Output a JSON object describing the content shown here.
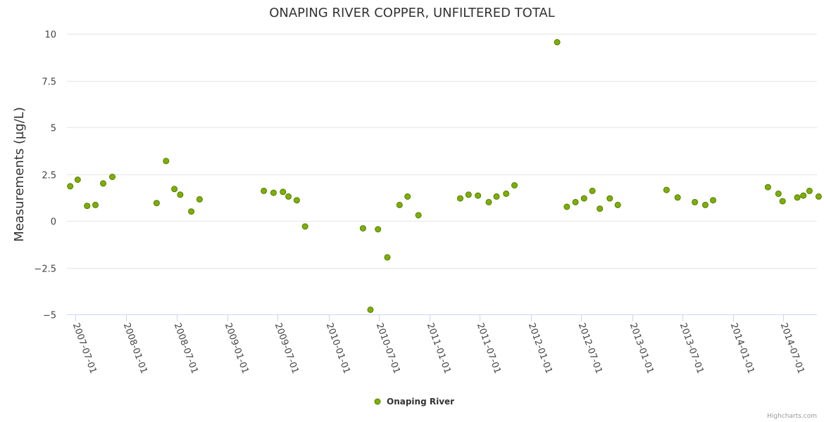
{
  "chart_data": {
    "type": "scatter",
    "title": "ONAPING RIVER COPPER, UNFILTERED TOTAL",
    "xlabel": "",
    "ylabel": "Measurements (µg/L)",
    "ylim": [
      -5,
      10
    ],
    "yticks": [
      {
        "value": 10,
        "label": "10"
      },
      {
        "value": 7.5,
        "label": "7.5"
      },
      {
        "value": 5,
        "label": "5"
      },
      {
        "value": 2.5,
        "label": "2.5"
      },
      {
        "value": 0,
        "label": "0"
      },
      {
        "value": -2.5,
        "label": "−2.5"
      },
      {
        "value": -5,
        "label": "−5"
      }
    ],
    "xlim": [
      "2007-06-01",
      "2014-10-30"
    ],
    "xticks": [
      "2007-07-01",
      "2008-01-01",
      "2008-07-01",
      "2009-01-01",
      "2009-07-01",
      "2010-01-01",
      "2010-07-01",
      "2011-01-01",
      "2011-07-01",
      "2012-01-01",
      "2012-07-01",
      "2013-01-01",
      "2013-07-01",
      "2014-01-01",
      "2014-07-01"
    ],
    "grid": true,
    "legend_position": "bottom-center",
    "color": "#7cb000",
    "series": [
      {
        "name": "Onaping River",
        "points": [
          {
            "x": "2007-06-13",
            "y": 1.85
          },
          {
            "x": "2007-07-10",
            "y": 2.2
          },
          {
            "x": "2007-08-13",
            "y": 0.8
          },
          {
            "x": "2007-09-12",
            "y": 0.85
          },
          {
            "x": "2007-10-10",
            "y": 2.0
          },
          {
            "x": "2007-11-12",
            "y": 2.35
          },
          {
            "x": "2008-04-20",
            "y": 0.95
          },
          {
            "x": "2008-05-24",
            "y": 3.2
          },
          {
            "x": "2008-06-23",
            "y": 1.7
          },
          {
            "x": "2008-07-14",
            "y": 1.4
          },
          {
            "x": "2008-08-23",
            "y": 0.5
          },
          {
            "x": "2008-09-22",
            "y": 1.15
          },
          {
            "x": "2009-05-12",
            "y": 1.6
          },
          {
            "x": "2009-06-16",
            "y": 1.5
          },
          {
            "x": "2009-07-20",
            "y": 1.55
          },
          {
            "x": "2009-08-09",
            "y": 1.3
          },
          {
            "x": "2009-09-08",
            "y": 1.1
          },
          {
            "x": "2009-10-08",
            "y": -0.3
          },
          {
            "x": "2010-05-05",
            "y": -0.4
          },
          {
            "x": "2010-06-01",
            "y": -4.75
          },
          {
            "x": "2010-06-28",
            "y": -0.45
          },
          {
            "x": "2010-08-01",
            "y": -1.95
          },
          {
            "x": "2010-09-14",
            "y": 0.85
          },
          {
            "x": "2010-10-13",
            "y": 1.3
          },
          {
            "x": "2010-11-21",
            "y": 0.3
          },
          {
            "x": "2011-04-21",
            "y": 1.2
          },
          {
            "x": "2011-05-21",
            "y": 1.4
          },
          {
            "x": "2011-06-24",
            "y": 1.35
          },
          {
            "x": "2011-08-02",
            "y": 1.0
          },
          {
            "x": "2011-08-30",
            "y": 1.3
          },
          {
            "x": "2011-10-04",
            "y": 1.45
          },
          {
            "x": "2011-11-03",
            "y": 1.9
          },
          {
            "x": "2012-04-05",
            "y": 9.55
          },
          {
            "x": "2012-05-10",
            "y": 0.75
          },
          {
            "x": "2012-06-10",
            "y": 1.0
          },
          {
            "x": "2012-07-11",
            "y": 1.2
          },
          {
            "x": "2012-08-10",
            "y": 1.6
          },
          {
            "x": "2012-09-06",
            "y": 0.65
          },
          {
            "x": "2012-10-12",
            "y": 1.2
          },
          {
            "x": "2012-11-10",
            "y": 0.85
          },
          {
            "x": "2013-05-05",
            "y": 1.65
          },
          {
            "x": "2013-06-14",
            "y": 1.25
          },
          {
            "x": "2013-08-15",
            "y": 1.0
          },
          {
            "x": "2013-09-22",
            "y": 0.85
          },
          {
            "x": "2013-10-20",
            "y": 1.1
          },
          {
            "x": "2014-05-06",
            "y": 1.8
          },
          {
            "x": "2014-06-13",
            "y": 1.45
          },
          {
            "x": "2014-06-28",
            "y": 1.05
          },
          {
            "x": "2014-08-20",
            "y": 1.25
          },
          {
            "x": "2014-09-11",
            "y": 1.35
          },
          {
            "x": "2014-10-03",
            "y": 1.6
          },
          {
            "x": "2014-11-05",
            "y": 1.3
          }
        ]
      }
    ]
  },
  "credits": "Highcharts.com"
}
